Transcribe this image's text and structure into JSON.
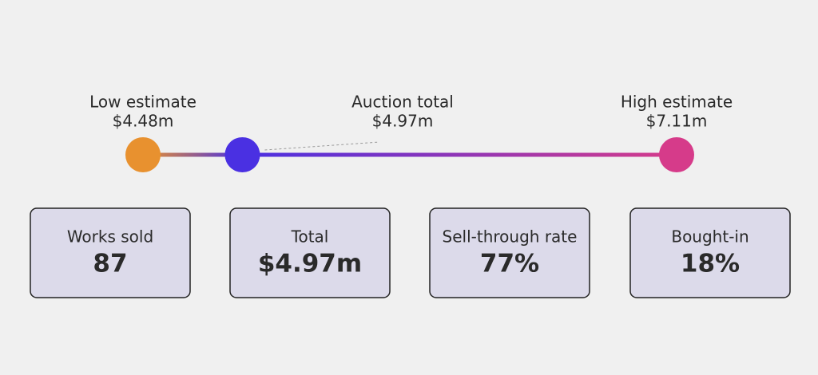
{
  "chart_data": {
    "type": "dumbbell",
    "categories": [
      "Low estimate",
      "Auction total",
      "High estimate"
    ],
    "values": [
      4.48,
      4.97,
      7.11
    ],
    "value_labels": [
      "$4.48m",
      "$4.97m",
      "$7.11m"
    ],
    "colors": [
      "#e8912f",
      "#4a30e2",
      "#d63b8a"
    ]
  },
  "stats": [
    {
      "label": "Works sold",
      "value": "87"
    },
    {
      "label": "Total",
      "value": "$4.97m"
    },
    {
      "label": "Sell-through rate",
      "value": "77%"
    },
    {
      "label": "Bought-in",
      "value": "18%"
    }
  ]
}
